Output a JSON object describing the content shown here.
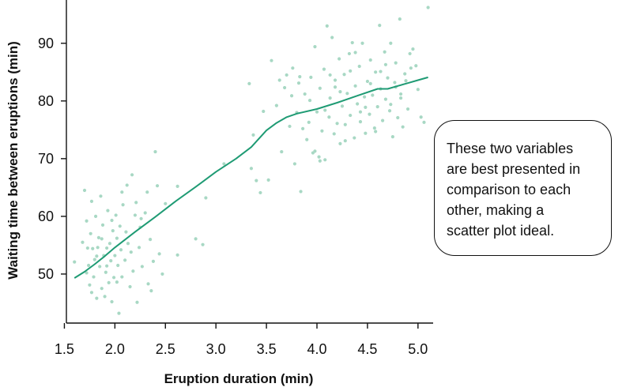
{
  "chart_data": {
    "type": "scatter",
    "xlabel": "Eruption duration (min)",
    "ylabel": "Waiting time between eruptions (min)",
    "xlim": [
      1.52,
      5.15
    ],
    "ylim": [
      41.5,
      97.5
    ],
    "xticks": [
      "1.5",
      "2.0",
      "2.5",
      "3.0",
      "3.5",
      "4.0",
      "4.5",
      "5.0"
    ],
    "yticks": [
      "50",
      "60",
      "70",
      "80",
      "90"
    ],
    "grid": false,
    "colors": {
      "points": "#a8d8c4",
      "trend": "#1f9b74",
      "axis": "#111111"
    },
    "trend_line": {
      "x": [
        1.6,
        1.7,
        1.8,
        1.9,
        2.0,
        2.2,
        2.4,
        2.6,
        2.8,
        3.0,
        3.2,
        3.35,
        3.5,
        3.6,
        3.7,
        3.8,
        4.0,
        4.2,
        4.4,
        4.6,
        4.7,
        4.8,
        4.9,
        5.0,
        5.1
      ],
      "y": [
        49.3,
        50.4,
        51.7,
        53.1,
        54.6,
        57.3,
        59.9,
        62.6,
        65.1,
        67.7,
        70.0,
        72.0,
        74.9,
        76.2,
        77.2,
        77.8,
        78.6,
        79.7,
        80.9,
        82.1,
        82.1,
        82.6,
        83.1,
        83.6,
        84.1
      ]
    },
    "points": [
      {
        "x": 1.6,
        "y": 52.1
      },
      {
        "x": 1.7,
        "y": 64.5
      },
      {
        "x": 1.72,
        "y": 59.2
      },
      {
        "x": 1.73,
        "y": 54.5
      },
      {
        "x": 1.74,
        "y": 51.5
      },
      {
        "x": 1.75,
        "y": 48.1
      },
      {
        "x": 1.76,
        "y": 57.0
      },
      {
        "x": 1.77,
        "y": 46.8
      },
      {
        "x": 1.78,
        "y": 54.4
      },
      {
        "x": 1.79,
        "y": 49.5
      },
      {
        "x": 1.8,
        "y": 52.5
      },
      {
        "x": 1.81,
        "y": 60.0
      },
      {
        "x": 1.82,
        "y": 45.8
      },
      {
        "x": 1.83,
        "y": 54.6
      },
      {
        "x": 1.84,
        "y": 56.3
      },
      {
        "x": 1.85,
        "y": 51.3
      },
      {
        "x": 1.86,
        "y": 63.5
      },
      {
        "x": 1.87,
        "y": 47.5
      },
      {
        "x": 1.88,
        "y": 58.5
      },
      {
        "x": 1.89,
        "y": 53.2
      },
      {
        "x": 1.9,
        "y": 46.1
      },
      {
        "x": 1.91,
        "y": 50.3
      },
      {
        "x": 1.92,
        "y": 54.5
      },
      {
        "x": 1.93,
        "y": 61.0
      },
      {
        "x": 1.94,
        "y": 48.5
      },
      {
        "x": 1.95,
        "y": 55.3
      },
      {
        "x": 1.96,
        "y": 52.3
      },
      {
        "x": 1.97,
        "y": 45.2
      },
      {
        "x": 1.98,
        "y": 57.5
      },
      {
        "x": 1.99,
        "y": 49.4
      },
      {
        "x": 2.0,
        "y": 53.2
      },
      {
        "x": 2.01,
        "y": 60.2
      },
      {
        "x": 2.02,
        "y": 56.2
      },
      {
        "x": 2.03,
        "y": 51.5
      },
      {
        "x": 2.04,
        "y": 43.2
      },
      {
        "x": 2.05,
        "y": 58.3
      },
      {
        "x": 2.06,
        "y": 54.2
      },
      {
        "x": 2.07,
        "y": 49.5
      },
      {
        "x": 2.08,
        "y": 62.0
      },
      {
        "x": 2.1,
        "y": 52.4
      },
      {
        "x": 2.12,
        "y": 65.4
      },
      {
        "x": 2.13,
        "y": 55.3
      },
      {
        "x": 2.15,
        "y": 47.8
      },
      {
        "x": 2.17,
        "y": 67.2
      },
      {
        "x": 2.18,
        "y": 50.5
      },
      {
        "x": 2.2,
        "y": 60.2
      },
      {
        "x": 2.22,
        "y": 45.1
      },
      {
        "x": 2.24,
        "y": 54.6
      },
      {
        "x": 2.25,
        "y": 58.1
      },
      {
        "x": 2.27,
        "y": 51.3
      },
      {
        "x": 2.3,
        "y": 60.6
      },
      {
        "x": 2.32,
        "y": 64.2
      },
      {
        "x": 2.33,
        "y": 48.3
      },
      {
        "x": 2.35,
        "y": 56.0
      },
      {
        "x": 2.38,
        "y": 52.2
      },
      {
        "x": 2.4,
        "y": 71.2
      },
      {
        "x": 2.42,
        "y": 65.3
      },
      {
        "x": 2.44,
        "y": 53.5
      },
      {
        "x": 2.47,
        "y": 50.0
      },
      {
        "x": 2.5,
        "y": 62.2
      },
      {
        "x": 1.68,
        "y": 55.5
      },
      {
        "x": 1.72,
        "y": 50.2
      },
      {
        "x": 1.77,
        "y": 62.6
      },
      {
        "x": 1.82,
        "y": 53.1
      },
      {
        "x": 1.87,
        "y": 56.1
      },
      {
        "x": 1.92,
        "y": 51.4
      },
      {
        "x": 1.97,
        "y": 59.3
      },
      {
        "x": 2.02,
        "y": 48.6
      },
      {
        "x": 2.07,
        "y": 64.2
      },
      {
        "x": 2.11,
        "y": 57.3
      },
      {
        "x": 2.16,
        "y": 53.8
      },
      {
        "x": 2.21,
        "y": 62.4
      },
      {
        "x": 2.26,
        "y": 59.6
      },
      {
        "x": 2.36,
        "y": 47.1
      },
      {
        "x": 2.62,
        "y": 65.2
      },
      {
        "x": 2.62,
        "y": 53.3
      },
      {
        "x": 2.8,
        "y": 56.1
      },
      {
        "x": 2.87,
        "y": 55.1
      },
      {
        "x": 2.9,
        "y": 63.2
      },
      {
        "x": 3.08,
        "y": 69.1
      },
      {
        "x": 3.33,
        "y": 83.0
      },
      {
        "x": 3.35,
        "y": 68.3
      },
      {
        "x": 3.37,
        "y": 74.1
      },
      {
        "x": 3.4,
        "y": 66.2
      },
      {
        "x": 3.44,
        "y": 64.1
      },
      {
        "x": 3.47,
        "y": 78.2
      },
      {
        "x": 3.52,
        "y": 66.3
      },
      {
        "x": 3.55,
        "y": 87.0
      },
      {
        "x": 3.6,
        "y": 79.2
      },
      {
        "x": 3.65,
        "y": 71.2
      },
      {
        "x": 3.68,
        "y": 82.3
      },
      {
        "x": 3.7,
        "y": 84.5
      },
      {
        "x": 3.73,
        "y": 75.6
      },
      {
        "x": 3.75,
        "y": 80.9
      },
      {
        "x": 3.78,
        "y": 69.1
      },
      {
        "x": 3.8,
        "y": 78.0
      },
      {
        "x": 3.82,
        "y": 83.1
      },
      {
        "x": 3.84,
        "y": 64.3
      },
      {
        "x": 3.86,
        "y": 75.2
      },
      {
        "x": 3.88,
        "y": 81.2
      },
      {
        "x": 3.9,
        "y": 73.3
      },
      {
        "x": 3.92,
        "y": 76.3
      },
      {
        "x": 3.94,
        "y": 84.1
      },
      {
        "x": 3.96,
        "y": 71.0
      },
      {
        "x": 3.98,
        "y": 89.4
      },
      {
        "x": 4.0,
        "y": 78.1
      },
      {
        "x": 4.02,
        "y": 70.3
      },
      {
        "x": 4.03,
        "y": 82.2
      },
      {
        "x": 4.05,
        "y": 74.8
      },
      {
        "x": 4.07,
        "y": 85.5
      },
      {
        "x": 4.08,
        "y": 69.8
      },
      {
        "x": 4.1,
        "y": 93.0
      },
      {
        "x": 4.12,
        "y": 77.2
      },
      {
        "x": 4.13,
        "y": 80.5
      },
      {
        "x": 4.15,
        "y": 91.0
      },
      {
        "x": 4.17,
        "y": 74.3
      },
      {
        "x": 4.18,
        "y": 83.6
      },
      {
        "x": 4.2,
        "y": 76.1
      },
      {
        "x": 4.22,
        "y": 87.3
      },
      {
        "x": 4.23,
        "y": 72.6
      },
      {
        "x": 4.25,
        "y": 79.1
      },
      {
        "x": 4.27,
        "y": 84.6
      },
      {
        "x": 4.28,
        "y": 75.9
      },
      {
        "x": 4.3,
        "y": 81.3
      },
      {
        "x": 4.32,
        "y": 88.2
      },
      {
        "x": 4.33,
        "y": 77.5
      },
      {
        "x": 4.35,
        "y": 90.1
      },
      {
        "x": 4.37,
        "y": 73.6
      },
      {
        "x": 4.38,
        "y": 82.6
      },
      {
        "x": 4.4,
        "y": 79.5
      },
      {
        "x": 4.42,
        "y": 86.0
      },
      {
        "x": 4.43,
        "y": 76.4
      },
      {
        "x": 4.45,
        "y": 90.0
      },
      {
        "x": 4.47,
        "y": 80.7
      },
      {
        "x": 4.48,
        "y": 74.4
      },
      {
        "x": 4.5,
        "y": 83.4
      },
      {
        "x": 4.52,
        "y": 77.7
      },
      {
        "x": 4.53,
        "y": 87.1
      },
      {
        "x": 4.55,
        "y": 81.0
      },
      {
        "x": 4.57,
        "y": 75.3
      },
      {
        "x": 4.58,
        "y": 85.0
      },
      {
        "x": 4.6,
        "y": 79.0
      },
      {
        "x": 4.62,
        "y": 93.1
      },
      {
        "x": 4.63,
        "y": 82.1
      },
      {
        "x": 4.65,
        "y": 76.6
      },
      {
        "x": 4.67,
        "y": 88.5
      },
      {
        "x": 4.68,
        "y": 80.3
      },
      {
        "x": 4.7,
        "y": 84.0
      },
      {
        "x": 4.72,
        "y": 78.3
      },
      {
        "x": 4.73,
        "y": 90.0
      },
      {
        "x": 4.75,
        "y": 73.8
      },
      {
        "x": 4.77,
        "y": 83.2
      },
      {
        "x": 4.78,
        "y": 86.6
      },
      {
        "x": 4.8,
        "y": 77.1
      },
      {
        "x": 4.82,
        "y": 94.2
      },
      {
        "x": 4.83,
        "y": 81.2
      },
      {
        "x": 4.85,
        "y": 75.5
      },
      {
        "x": 4.87,
        "y": 84.7
      },
      {
        "x": 4.9,
        "y": 78.6
      },
      {
        "x": 4.92,
        "y": 88.2
      },
      {
        "x": 4.95,
        "y": 89.0
      },
      {
        "x": 4.98,
        "y": 86.1
      },
      {
        "x": 5.0,
        "y": 82.0
      },
      {
        "x": 5.03,
        "y": 77.2
      },
      {
        "x": 5.06,
        "y": 76.3
      },
      {
        "x": 5.1,
        "y": 96.2
      },
      {
        "x": 3.98,
        "y": 71.3
      },
      {
        "x": 4.03,
        "y": 69.6
      },
      {
        "x": 4.13,
        "y": 84.5
      },
      {
        "x": 4.23,
        "y": 81.6
      },
      {
        "x": 4.33,
        "y": 85.2
      },
      {
        "x": 4.43,
        "y": 78.1
      },
      {
        "x": 4.53,
        "y": 83.0
      },
      {
        "x": 4.63,
        "y": 85.1
      },
      {
        "x": 4.73,
        "y": 79.4
      },
      {
        "x": 4.83,
        "y": 80.5
      },
      {
        "x": 4.93,
        "y": 85.7
      },
      {
        "x": 3.83,
        "y": 84.2
      },
      {
        "x": 3.93,
        "y": 80.1
      },
      {
        "x": 4.08,
        "y": 78.4
      },
      {
        "x": 4.18,
        "y": 82.4
      },
      {
        "x": 4.28,
        "y": 73.1
      },
      {
        "x": 4.38,
        "y": 88.4
      },
      {
        "x": 4.48,
        "y": 78.9
      },
      {
        "x": 4.58,
        "y": 74.7
      },
      {
        "x": 4.68,
        "y": 86.3
      },
      {
        "x": 4.78,
        "y": 82.4
      },
      {
        "x": 4.88,
        "y": 83.5
      },
      {
        "x": 3.76,
        "y": 85.7
      },
      {
        "x": 3.63,
        "y": 83.6
      }
    ]
  },
  "callout": {
    "lines": [
      "These two variables",
      "are best presented in",
      "comparison to each",
      "other, making a",
      "scatter plot ideal."
    ]
  }
}
